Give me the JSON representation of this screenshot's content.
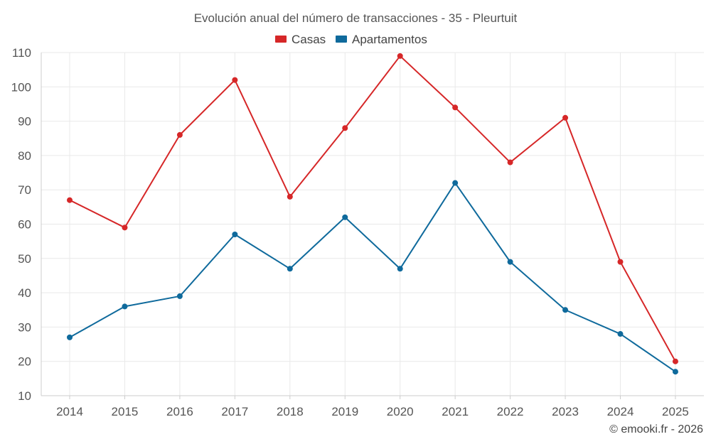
{
  "chart_data": {
    "type": "line",
    "title": "Evolución anual del número de transacciones - 35 - Pleurtuit",
    "categories": [
      "2014",
      "2015",
      "2016",
      "2017",
      "2018",
      "2019",
      "2020",
      "2021",
      "2022",
      "2023",
      "2024",
      "2025"
    ],
    "series": [
      {
        "name": "Casas",
        "color": "#d62728",
        "values": [
          67,
          59,
          86,
          102,
          68,
          88,
          109,
          94,
          78,
          91,
          49,
          20
        ]
      },
      {
        "name": "Apartamentos",
        "color": "#0f6a9c",
        "values": [
          27,
          36,
          39,
          57,
          47,
          62,
          47,
          72,
          49,
          35,
          28,
          17
        ]
      }
    ],
    "yticks": [
      "10",
      "20",
      "30",
      "40",
      "50",
      "60",
      "70",
      "80",
      "90",
      "100",
      "110"
    ],
    "ylim": [
      10,
      110
    ],
    "grid": true,
    "legend_position": "top-center",
    "xlabel": "",
    "ylabel": ""
  },
  "credit": "© emooki.fr - 2026"
}
